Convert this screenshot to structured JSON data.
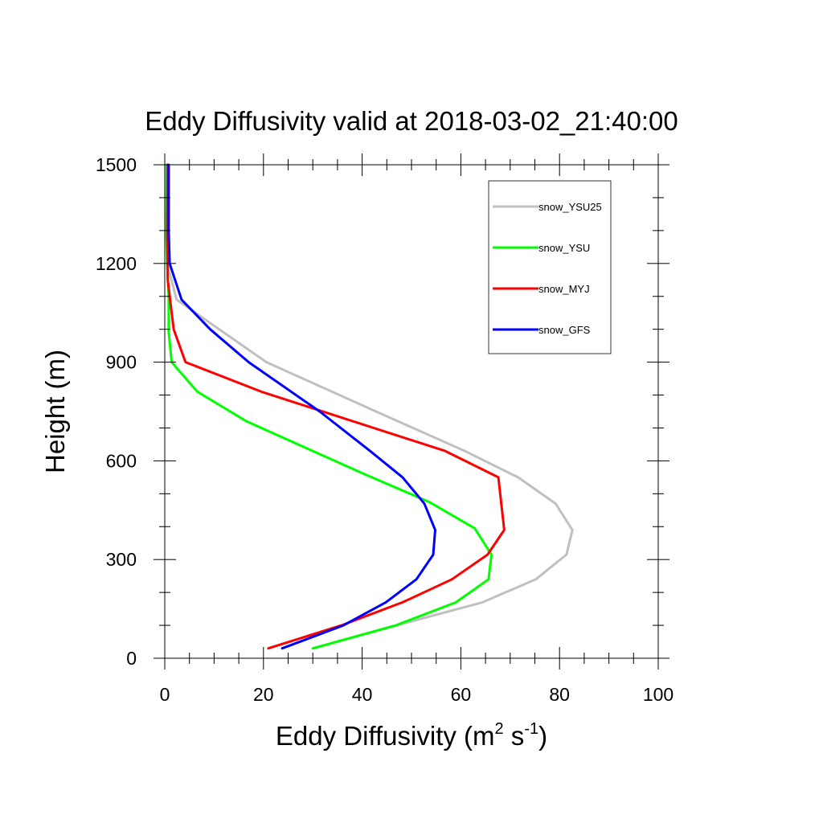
{
  "chart_data": {
    "type": "line",
    "title": "Eddy Diffusivity valid at 2018-03-02_21:40:00",
    "xlabel": {
      "base": "Eddy Diffusivity (m",
      "sup1": "2",
      "mid": " s",
      "sup2": "-1",
      "end": ")"
    },
    "ylabel": "Height (m)",
    "xlim": [
      0,
      100
    ],
    "ylim": [
      0,
      1500
    ],
    "x_major_ticks": [
      0,
      20,
      40,
      60,
      80,
      100
    ],
    "x_tick_labels": [
      "0",
      "20",
      "40",
      "60",
      "80",
      "100"
    ],
    "y_major_ticks": [
      0,
      300,
      600,
      900,
      1200,
      1500
    ],
    "y_tick_labels": [
      "0",
      "300",
      "600",
      "900",
      "1200",
      "1500"
    ],
    "x_minor_step": 5,
    "y_minor_step": 100,
    "grid": false,
    "legend_position": "top-right",
    "series": [
      {
        "name": "snow_YSU25",
        "color": "#c0c0c0",
        "points": [
          [
            30.2,
            30
          ],
          [
            47,
            100
          ],
          [
            64.4,
            170
          ],
          [
            75.2,
            240
          ],
          [
            81.4,
            315
          ],
          [
            82.6,
            390
          ],
          [
            79.2,
            470
          ],
          [
            71.6,
            550
          ],
          [
            60.8,
            630
          ],
          [
            42.8,
            750
          ],
          [
            20.6,
            900
          ],
          [
            2.4,
            1090
          ],
          [
            0.5,
            1200
          ],
          [
            0.3,
            1300
          ],
          [
            0.3,
            1500
          ]
        ]
      },
      {
        "name": "snow_YSU",
        "color": "#00ff00",
        "points": [
          [
            30,
            30
          ],
          [
            46.8,
            100
          ],
          [
            59,
            170
          ],
          [
            65.6,
            240
          ],
          [
            66.2,
            315
          ],
          [
            62.8,
            395
          ],
          [
            53.6,
            475
          ],
          [
            40.4,
            560
          ],
          [
            16.6,
            720
          ],
          [
            6.6,
            810
          ],
          [
            1.4,
            900
          ],
          [
            0.8,
            990
          ],
          [
            0.8,
            1100
          ],
          [
            0.5,
            1200
          ],
          [
            0.4,
            1300
          ],
          [
            0.5,
            1500
          ]
        ]
      },
      {
        "name": "snow_MYJ",
        "color": "#ff0000",
        "points": [
          [
            21,
            30
          ],
          [
            35.8,
            100
          ],
          [
            48.2,
            170
          ],
          [
            58.2,
            240
          ],
          [
            65.4,
            315
          ],
          [
            68.8,
            390
          ],
          [
            68.2,
            470
          ],
          [
            67.6,
            550
          ],
          [
            56.8,
            630
          ],
          [
            19.6,
            810
          ],
          [
            4.2,
            900
          ],
          [
            1.8,
            1000
          ],
          [
            0.6,
            1150
          ],
          [
            0.5,
            1300
          ],
          [
            0.6,
            1500
          ]
        ]
      },
      {
        "name": "snow_GFS",
        "color": "#0000ff",
        "points": [
          [
            23.8,
            30
          ],
          [
            36.2,
            100
          ],
          [
            44.8,
            170
          ],
          [
            51,
            240
          ],
          [
            54.4,
            315
          ],
          [
            54.8,
            390
          ],
          [
            52.6,
            470
          ],
          [
            48.2,
            550
          ],
          [
            41.6,
            630
          ],
          [
            31.4,
            750
          ],
          [
            17,
            900
          ],
          [
            9.2,
            1000
          ],
          [
            3.4,
            1090
          ],
          [
            1,
            1200
          ],
          [
            0.8,
            1300
          ],
          [
            0.8,
            1500
          ]
        ]
      }
    ]
  }
}
